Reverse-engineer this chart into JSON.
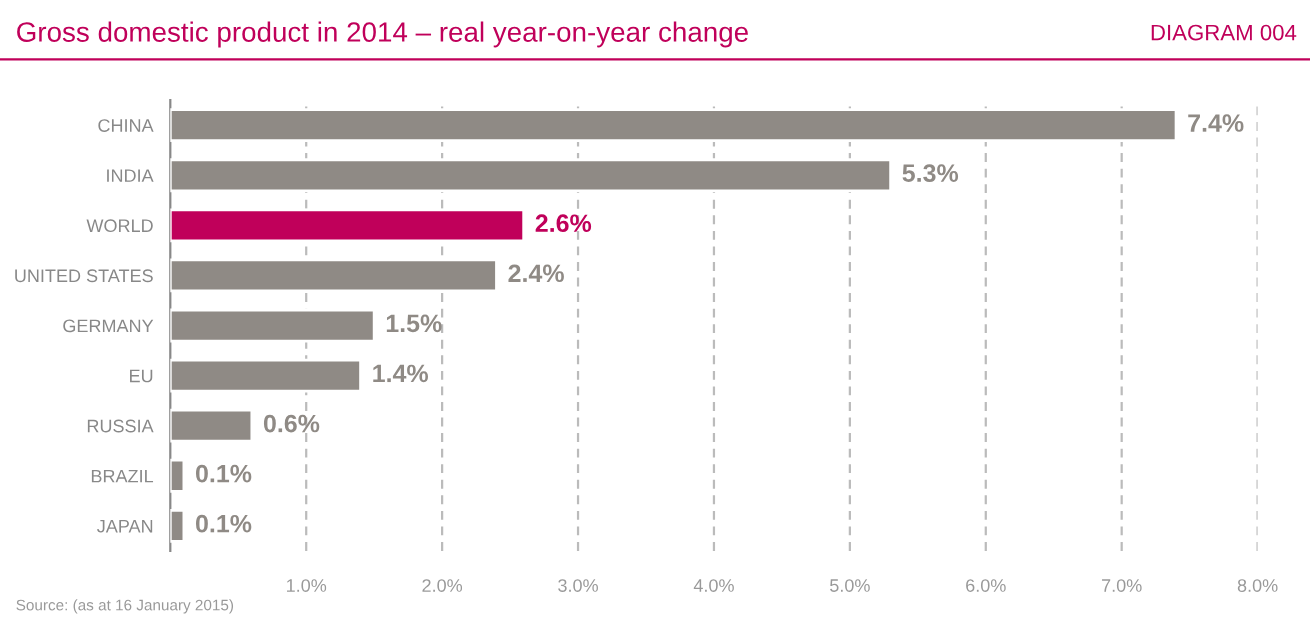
{
  "chart_data": {
    "type": "bar",
    "orientation": "horizontal",
    "title": "Gross domestic product in 2014 – real year-on-year change",
    "subtitle": "DIAGRAM 004",
    "categories": [
      "CHINA",
      "INDIA",
      "WORLD",
      "UNITED STATES",
      "GERMANY",
      "EU",
      "RUSSIA",
      "BRAZIL",
      "JAPAN"
    ],
    "values": [
      7.4,
      5.3,
      2.6,
      2.4,
      1.5,
      1.4,
      0.6,
      0.1,
      0.1
    ],
    "colors": [
      "#8f8a85",
      "#8f8a85",
      "#c0005a",
      "#8f8a85",
      "#8f8a85",
      "#8f8a85",
      "#8f8a85",
      "#8f8a85",
      "#8f8a85"
    ],
    "value_labels": [
      "7.4%",
      "5.3%",
      "2.6%",
      "2.4%",
      "1.5%",
      "1.4%",
      "0.6%",
      "0.1%",
      "0.1%"
    ],
    "xlim": [
      0,
      8
    ],
    "xticks": [
      {
        "value": 1,
        "label": "1.0%"
      },
      {
        "value": 2,
        "label": "2.0%"
      },
      {
        "value": 3,
        "label": "3.0%"
      },
      {
        "value": 4,
        "label": "4.0%"
      },
      {
        "value": 5,
        "label": "5.0%"
      },
      {
        "value": 6,
        "label": "6.0%"
      },
      {
        "value": 7,
        "label": "7.0%"
      },
      {
        "value": 8,
        "label": "8.0%"
      }
    ],
    "grid": "x",
    "annotations": [
      "Source: (as at 16 January 2015)"
    ]
  }
}
